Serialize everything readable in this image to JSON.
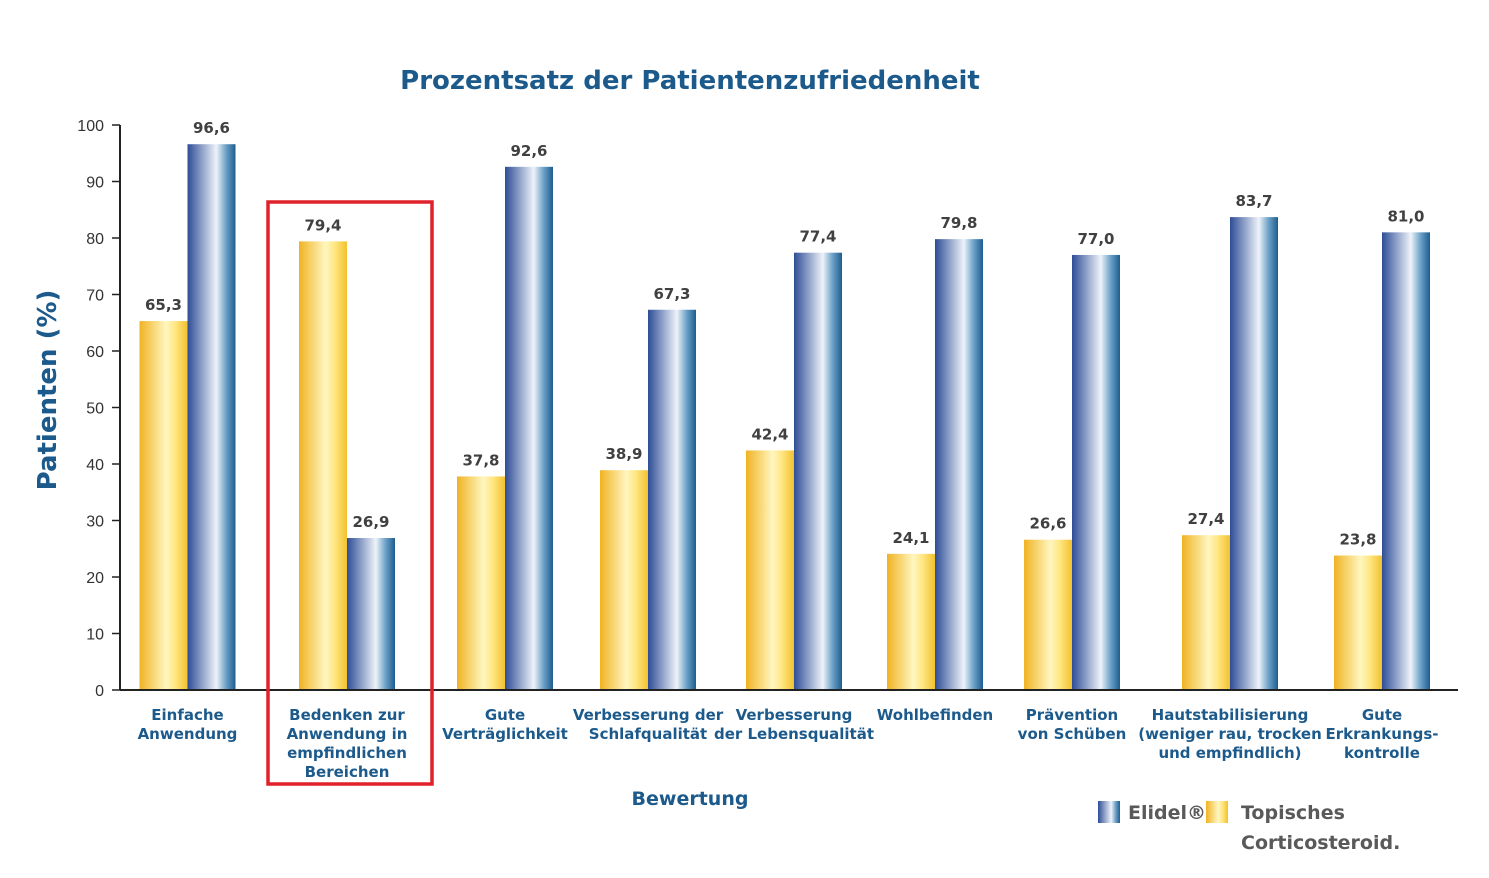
{
  "chart_data": {
    "type": "bar",
    "title": "Prozentsatz der Patientenzufriedenheit",
    "xlabel": "Bewertung",
    "ylabel": "Patienten (%)",
    "ylim": [
      0,
      100
    ],
    "yticks": [
      "0",
      "10",
      "20",
      "30",
      "40",
      "50",
      "60",
      "70",
      "80",
      "90",
      "100"
    ],
    "grid": false,
    "legend_position": "bottom-right",
    "categories": [
      [
        "Einfache",
        "Anwendung"
      ],
      [
        "Bedenken zur",
        "Anwendung in",
        "empfindlichen",
        "Bereichen"
      ],
      [
        "Gute",
        "Verträglichkeit"
      ],
      [
        "Verbesserung der",
        "Schlafqualität"
      ],
      [
        "Verbesserung",
        "der Lebensqualität"
      ],
      [
        "Wohlbefinden"
      ],
      [
        "Prävention",
        "von Schüben"
      ],
      [
        "Hautstabilisierung",
        "(weniger rau, trocken",
        "und empfindlich)"
      ],
      [
        "Gute",
        "Erkrankungs-",
        "kontrolle"
      ]
    ],
    "series": [
      {
        "name": "Topisches Corticosteroid.",
        "color": "#f5c430",
        "values": [
          65.3,
          79.4,
          37.8,
          38.9,
          42.4,
          24.1,
          26.6,
          27.4,
          23.8
        ],
        "labels": [
          "65,3",
          "79,4",
          "37,8",
          "38,9",
          "42,4",
          "24,1",
          "26,6",
          "27,4",
          "23,8"
        ]
      },
      {
        "name": "Elidel®",
        "color": "#2f4f98",
        "values": [
          96.6,
          26.9,
          92.6,
          67.3,
          77.4,
          79.8,
          77.0,
          83.7,
          81.0
        ],
        "labels": [
          "96,6",
          "26,9",
          "92,6",
          "67,3",
          "77,4",
          "79,8",
          "77,0",
          "83,7",
          "81,0"
        ]
      }
    ],
    "highlighted_category_index": 1,
    "highlight_color": "#e0202a",
    "legend": {
      "elidel": "Elidel®",
      "tcs_line1": "Topisches",
      "tcs_line2": "Corticosteroid."
    }
  }
}
